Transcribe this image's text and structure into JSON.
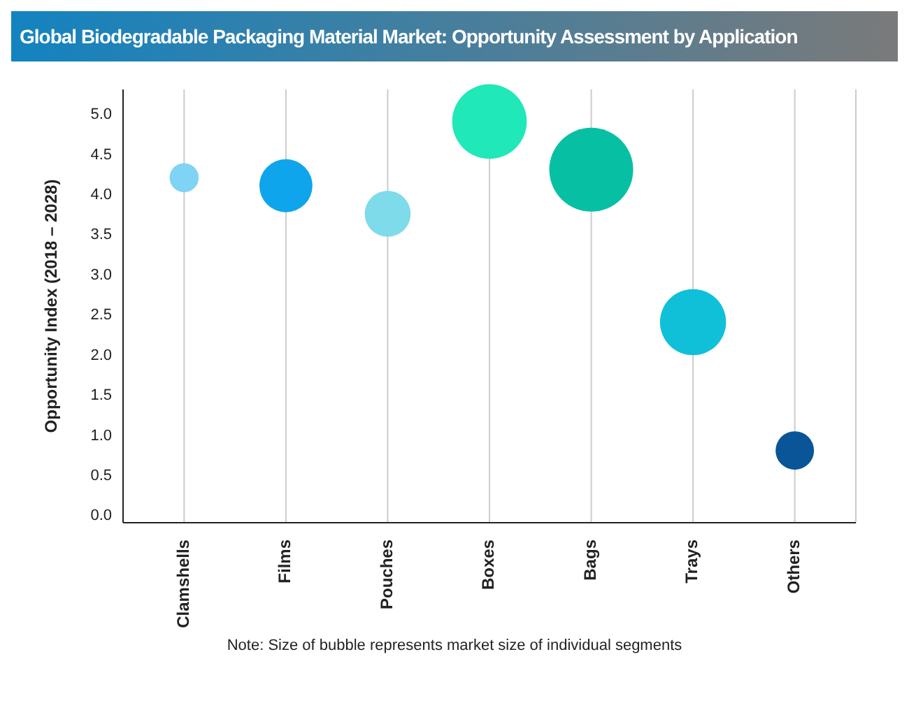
{
  "chart_data": {
    "type": "bubble",
    "title": "Global Biodegradable Packaging Material Market: Opportunity Assessment by Application",
    "ylabel": "Opportunity Index (2018 – 2028)",
    "annotations": [
      "Note: Size of bubble represents market size of individual segments"
    ],
    "categories": [
      "Clamshells",
      "Films",
      "Pouches",
      "Boxes",
      "Bags",
      "Trays",
      "Others"
    ],
    "values": [
      4.2,
      4.1,
      3.75,
      4.9,
      4.3,
      2.4,
      0.8
    ],
    "sizes": [
      0.12,
      0.4,
      0.3,
      0.79,
      1,
      0.62,
      0.21
    ],
    "colors": [
      "#7fd3f5",
      "#0ea5ec",
      "#7ddbea",
      "#20e8b8",
      "#07c0a4",
      "#10c0d8",
      "#0a5598"
    ],
    "ylim": [
      -0.1,
      5.3
    ],
    "yticks": [
      {
        "value": 0,
        "label": "0.0"
      },
      0.5,
      {
        "value": 1,
        "label": "1.0"
      },
      1.5,
      {
        "value": 2,
        "label": "2.0"
      },
      2.5,
      {
        "value": 3,
        "label": "3.0"
      },
      3.5,
      {
        "value": 4,
        "label": "4.0"
      },
      4.5,
      {
        "value": 5,
        "label": "5.0"
      }
    ],
    "grid": "x",
    "legend": false
  }
}
